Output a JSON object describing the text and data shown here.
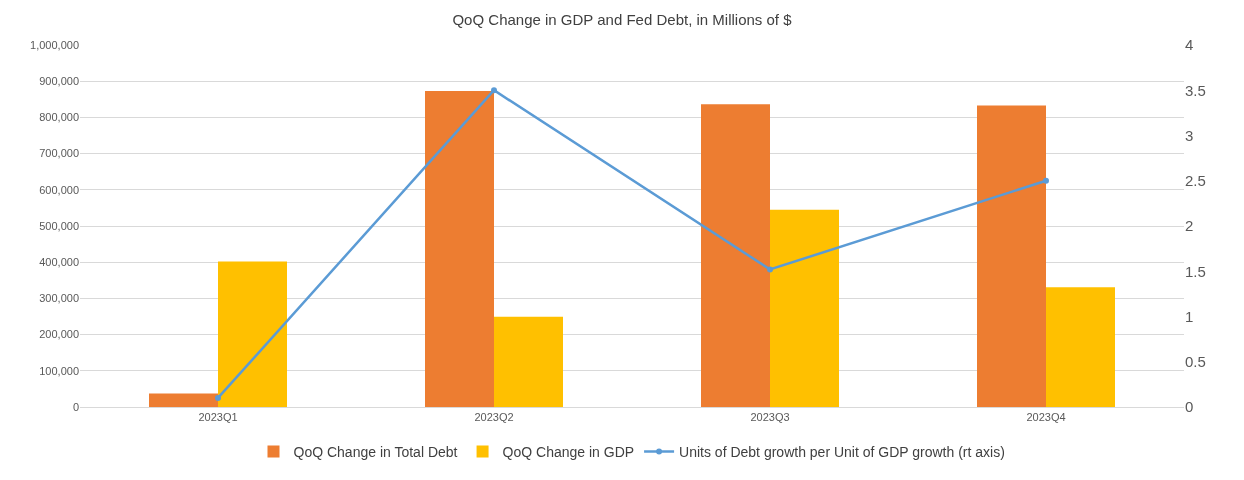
{
  "chart_data": {
    "type": "bar",
    "title": "QoQ Change in GDP and Fed Debt, in Millions of $",
    "categories": [
      "2023Q1",
      "2023Q2",
      "2023Q3",
      "2023Q4"
    ],
    "series": [
      {
        "name": "QoQ Change in Total Debt",
        "color": "#ed7d31",
        "values": [
          37000,
          873000,
          836000,
          833000
        ]
      },
      {
        "name": "QoQ Change in GDP",
        "color": "#ffc000",
        "values": [
          402000,
          249000,
          545000,
          331000
        ]
      },
      {
        "name": "Units of Debt growth per Unit of GDP growth (rt axis)",
        "type": "line",
        "axis": "y2",
        "color": "#5b9bd5",
        "marker": "circle",
        "values": [
          0.1,
          3.5,
          1.52,
          2.5
        ]
      }
    ],
    "ylim": [
      0,
      1000000
    ],
    "yticks": [
      0,
      {
        "value": 100000,
        "label": "100,000"
      },
      {
        "value": 200000,
        "label": "200,000"
      },
      {
        "value": 300000,
        "label": "300,000"
      },
      {
        "value": 400000,
        "label": "400,000"
      },
      {
        "value": 500000,
        "label": "500,000"
      },
      {
        "value": 600000,
        "label": "600,000"
      },
      {
        "value": 700000,
        "label": "700,000"
      },
      {
        "value": 800000,
        "label": "800,000"
      },
      {
        "value": 900000,
        "label": "900,000"
      },
      {
        "value": 1000000,
        "label": "1,000,000"
      }
    ],
    "y2lim": [
      0,
      4
    ],
    "y2ticks": [
      0,
      0.5,
      1,
      1.5,
      2,
      2.5,
      3,
      3.5,
      4
    ],
    "grid": "y",
    "legend": "bottom"
  }
}
